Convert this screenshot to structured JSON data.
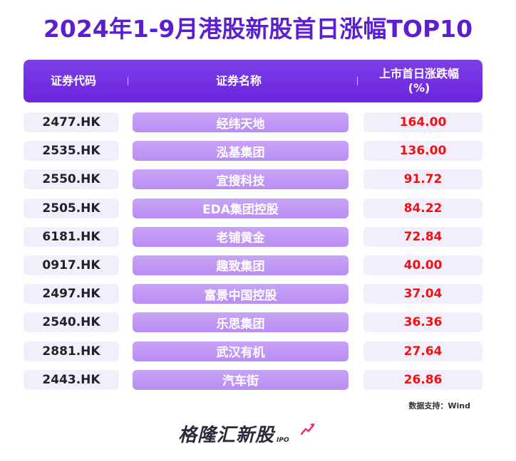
{
  "title": "2024年1-9月港股新股首日涨幅TOP10",
  "table": {
    "headers": {
      "code": "证券代码",
      "name": "证券名称",
      "change_line1": "上市首日涨跌幅",
      "change_line2": "(%)"
    },
    "rows": [
      {
        "code": "2477.HK",
        "name": "经纬天地",
        "change": "164.00"
      },
      {
        "code": "2535.HK",
        "name": "泓基集团",
        "change": "136.00"
      },
      {
        "code": "2550.HK",
        "name": "宜搜科技",
        "change": "91.72"
      },
      {
        "code": "2505.HK",
        "name": "EDA集团控股",
        "change": "84.22"
      },
      {
        "code": "6181.HK",
        "name": "老铺黄金",
        "change": "72.84"
      },
      {
        "code": "0917.HK",
        "name": "趣致集团",
        "change": "40.00"
      },
      {
        "code": "2497.HK",
        "name": "富景中国控股",
        "change": "37.04"
      },
      {
        "code": "2540.HK",
        "name": "乐思集团",
        "change": "36.36"
      },
      {
        "code": "2881.HK",
        "name": "武汉有机",
        "change": "27.64"
      },
      {
        "code": "2443.HK",
        "name": "汽车街",
        "change": "26.86"
      }
    ]
  },
  "source": "数据支持：Wind",
  "logo": {
    "text": "格隆汇新股",
    "suffix": "IPO",
    "icon": "trend-arrow-icon"
  },
  "colors": {
    "title": "#5b1fd0",
    "header_bg": "#6a25dd",
    "name_cell_bg": "#c8a3f7",
    "light_cell_bg": "#f3eefb",
    "change_text": "#ee1111",
    "logo_arrow": "#e8336d"
  }
}
